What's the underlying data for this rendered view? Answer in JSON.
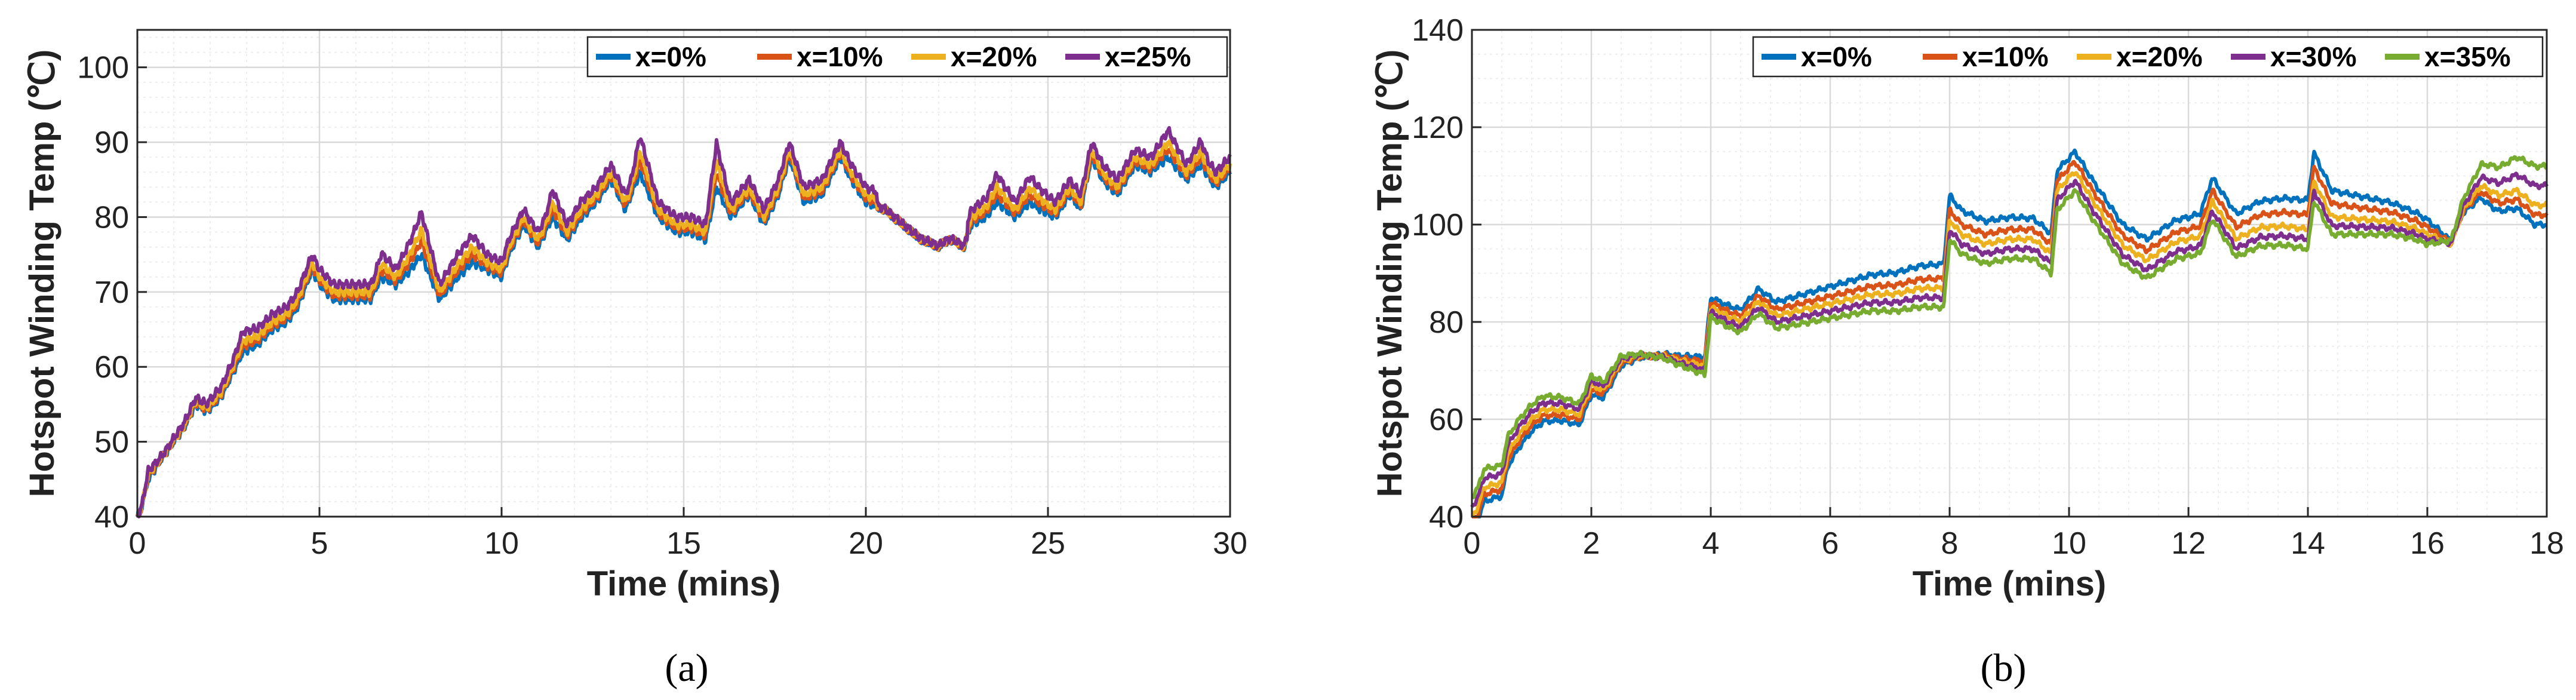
{
  "colors": {
    "blue": "#0072BD",
    "orange": "#D95319",
    "yellow": "#EDB120",
    "purple": "#7E2F8E",
    "green": "#77AC30",
    "grid_major": "#d9d9d9",
    "grid_minor": "#eeeeee"
  },
  "chart_data": [
    {
      "panel": "(a)",
      "type": "line",
      "title": "",
      "xlabel": "Time (mins)",
      "ylabel": "Hotspot Winding Temp (℃)",
      "xlim": [
        0,
        30
      ],
      "ylim": [
        40,
        105
      ],
      "xticks": [
        0,
        5,
        10,
        15,
        20,
        25,
        30
      ],
      "yticks": [
        40,
        50,
        60,
        70,
        80,
        90,
        100
      ],
      "grid": true,
      "minor_grid": true,
      "legend_position": "top-right",
      "base_curve": [
        [
          0,
          40
        ],
        [
          0.1,
          41
        ],
        [
          0.3,
          45
        ],
        [
          0.7,
          48
        ],
        [
          1.0,
          50
        ],
        [
          1.3,
          52
        ],
        [
          1.6,
          55
        ],
        [
          1.9,
          54
        ],
        [
          2.3,
          56
        ],
        [
          2.6,
          59
        ],
        [
          2.9,
          62
        ],
        [
          3.3,
          63
        ],
        [
          3.7,
          65
        ],
        [
          4.1,
          66
        ],
        [
          4.4,
          68
        ],
        [
          4.8,
          73
        ],
        [
          5.0,
          71
        ],
        [
          5.4,
          69
        ],
        [
          5.9,
          69
        ],
        [
          6.4,
          69
        ],
        [
          6.7,
          72
        ],
        [
          7.1,
          71
        ],
        [
          7.5,
          73
        ],
        [
          7.8,
          75
        ],
        [
          8.3,
          69
        ],
        [
          8.8,
          72
        ],
        [
          9.2,
          74
        ],
        [
          9.6,
          73
        ],
        [
          10.0,
          72
        ],
        [
          10.2,
          75
        ],
        [
          10.6,
          79
        ],
        [
          11.0,
          76
        ],
        [
          11.4,
          80
        ],
        [
          11.8,
          77
        ],
        [
          12.2,
          80
        ],
        [
          12.6,
          82
        ],
        [
          13.0,
          85
        ],
        [
          13.4,
          81
        ],
        [
          13.8,
          86
        ],
        [
          14.3,
          80
        ],
        [
          14.8,
          78
        ],
        [
          15.2,
          78
        ],
        [
          15.6,
          77
        ],
        [
          15.9,
          84
        ],
        [
          16.3,
          80
        ],
        [
          16.8,
          83
        ],
        [
          17.2,
          79
        ],
        [
          17.6,
          83
        ],
        [
          17.9,
          88
        ],
        [
          18.3,
          82
        ],
        [
          18.8,
          83
        ],
        [
          19.3,
          88
        ],
        [
          19.6,
          85
        ],
        [
          20.0,
          82
        ],
        [
          20.5,
          81
        ],
        [
          21.0,
          79
        ],
        [
          21.5,
          77
        ],
        [
          22.0,
          76
        ],
        [
          22.3,
          77
        ],
        [
          22.7,
          76
        ],
        [
          22.9,
          79
        ],
        [
          23.3,
          80
        ],
        [
          23.6,
          82
        ],
        [
          24.1,
          80
        ],
        [
          24.5,
          82
        ],
        [
          24.8,
          81
        ],
        [
          25.2,
          80
        ],
        [
          25.6,
          83
        ],
        [
          25.9,
          81
        ],
        [
          26.2,
          88
        ],
        [
          26.5,
          85
        ],
        [
          26.9,
          83
        ],
        [
          27.4,
          87
        ],
        [
          27.8,
          86
        ],
        [
          28.3,
          88
        ],
        [
          28.8,
          85
        ],
        [
          29.2,
          87
        ],
        [
          29.6,
          84
        ],
        [
          30.0,
          86
        ]
      ],
      "series": [
        {
          "name": "x=0%",
          "color": "#0072BD",
          "spike_amplitude": 1.0,
          "offset": 0.0
        },
        {
          "name": "x=10%",
          "color": "#D95319",
          "spike_amplitude": 1.25,
          "offset": 0.5
        },
        {
          "name": "x=20%",
          "color": "#EDB120",
          "spike_amplitude": 1.45,
          "offset": 1.0
        },
        {
          "name": "x=25%",
          "color": "#7E2F8E",
          "spike_amplitude": 1.7,
          "offset": 2.0
        }
      ]
    },
    {
      "panel": "(b)",
      "type": "line",
      "title": "",
      "xlabel": "Time (mins)",
      "ylabel": "Hotspot Winding Temp (℃)",
      "xlim": [
        0,
        18
      ],
      "ylim": [
        40,
        140
      ],
      "xticks": [
        0,
        2,
        4,
        6,
        8,
        10,
        12,
        14,
        16,
        18
      ],
      "yticks": [
        40,
        60,
        80,
        100,
        120,
        140
      ],
      "grid": true,
      "minor_grid": true,
      "legend_position": "top-right",
      "base_curve": [
        [
          0,
          40
        ],
        [
          0.1,
          42
        ],
        [
          0.2,
          46
        ],
        [
          0.5,
          47
        ],
        [
          0.6,
          53
        ],
        [
          0.8,
          57
        ],
        [
          1.0,
          60
        ],
        [
          1.2,
          62
        ],
        [
          1.5,
          62
        ],
        [
          1.8,
          61
        ],
        [
          2.0,
          67
        ],
        [
          2.2,
          66
        ],
        [
          2.5,
          72
        ],
        [
          2.8,
          73
        ],
        [
          3.2,
          73
        ],
        [
          3.5,
          72
        ],
        [
          3.9,
          71
        ],
        [
          4.0,
          83
        ],
        [
          4.3,
          81
        ],
        [
          4.5,
          80
        ],
        [
          4.8,
          84
        ],
        [
          5.1,
          81
        ],
        [
          5.5,
          82
        ],
        [
          5.9,
          83
        ],
        [
          6.3,
          84
        ],
        [
          6.7,
          85
        ],
        [
          7.1,
          85
        ],
        [
          7.5,
          86
        ],
        [
          7.9,
          86
        ],
        [
          8.0,
          100
        ],
        [
          8.2,
          97
        ],
        [
          8.6,
          95
        ],
        [
          9.0,
          96
        ],
        [
          9.4,
          96
        ],
        [
          9.7,
          93
        ],
        [
          9.8,
          106
        ],
        [
          10.1,
          110
        ],
        [
          10.4,
          104
        ],
        [
          10.9,
          95
        ],
        [
          11.3,
          92
        ],
        [
          11.8,
          96
        ],
        [
          12.2,
          97
        ],
        [
          12.4,
          104
        ],
        [
          12.8,
          96
        ],
        [
          13.2,
          98
        ],
        [
          13.6,
          98
        ],
        [
          14.0,
          97
        ],
        [
          14.1,
          107
        ],
        [
          14.4,
          100
        ],
        [
          14.9,
          100
        ],
        [
          15.4,
          100
        ],
        [
          15.8,
          99
        ],
        [
          16.2,
          97
        ],
        [
          16.4,
          96
        ],
        [
          16.6,
          103
        ],
        [
          16.9,
          108
        ],
        [
          17.2,
          106
        ],
        [
          17.5,
          107
        ],
        [
          17.8,
          104
        ]
      ],
      "series": [
        {
          "name": "x=0%",
          "color": "#0072BD",
          "offsets": [
            [
              0,
              -3
            ],
            [
              2,
              -2
            ],
            [
              4,
              2
            ],
            [
              8,
              6
            ],
            [
              10,
              5
            ],
            [
              12,
              5
            ],
            [
              14,
              8
            ],
            [
              16,
              3
            ],
            [
              17,
              -3
            ],
            [
              17.8,
              -4
            ]
          ]
        },
        {
          "name": "x=10%",
          "color": "#D95319",
          "offsets": [
            [
              0,
              -1.5
            ],
            [
              2,
              -1
            ],
            [
              4,
              1
            ],
            [
              8,
              3
            ],
            [
              10,
              3
            ],
            [
              12,
              2.5
            ],
            [
              14,
              5
            ],
            [
              16,
              1.5
            ],
            [
              17,
              -1.5
            ],
            [
              17.8,
              -2
            ]
          ]
        },
        {
          "name": "x=20%",
          "color": "#EDB120",
          "offsets": [
            [
              0,
              0
            ],
            [
              2,
              0
            ],
            [
              4,
              0
            ],
            [
              8,
              1
            ],
            [
              10,
              1
            ],
            [
              12,
              0.5
            ],
            [
              14,
              2
            ],
            [
              16,
              0
            ],
            [
              17,
              0
            ],
            [
              17.8,
              0
            ]
          ]
        },
        {
          "name": "x=30%",
          "color": "#7E2F8E",
          "offsets": [
            [
              0,
              2
            ],
            [
              2,
              1
            ],
            [
              4,
              -1
            ],
            [
              8,
              -1
            ],
            [
              10,
              -1
            ],
            [
              12,
              -1.5
            ],
            [
              14,
              0
            ],
            [
              16,
              -1
            ],
            [
              17,
              2
            ],
            [
              17.8,
              4
            ]
          ]
        },
        {
          "name": "x=35%",
          "color": "#77AC30",
          "offsets": [
            [
              0,
              4
            ],
            [
              2,
              2
            ],
            [
              4,
              -2
            ],
            [
              8,
              -3
            ],
            [
              10,
              -3
            ],
            [
              12,
              -3
            ],
            [
              14,
              -2
            ],
            [
              16,
              -2
            ],
            [
              17,
              5
            ],
            [
              17.8,
              8
            ]
          ]
        }
      ]
    }
  ]
}
